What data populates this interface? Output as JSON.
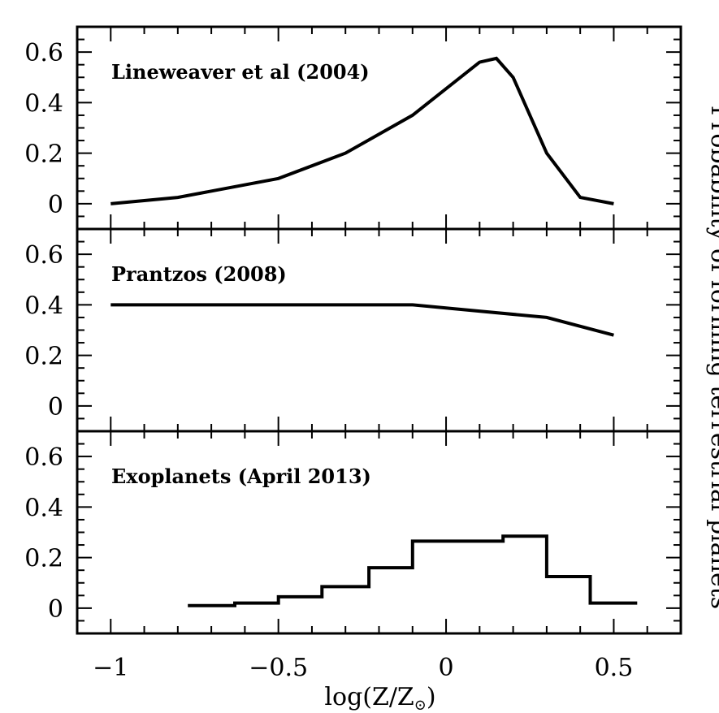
{
  "chart_data": {
    "type": "line",
    "xlabel": "log(Z/Z",
    "xlabel_sub": "⊙",
    "xlabel_close": ")",
    "ylabel": "Probability of forming terrestrial planets",
    "xlim": [
      -1.1,
      0.7
    ],
    "ylim": [
      -0.1,
      0.7
    ],
    "x_ticks": [
      -1,
      -0.5,
      0,
      0.5
    ],
    "x_tick_labels": [
      "−1",
      "−0.5",
      "0",
      "0.5"
    ],
    "y_ticks": [
      0,
      0.2,
      0.4,
      0.6
    ],
    "y_tick_labels": [
      "0",
      "0.2",
      "0.4",
      "0.6"
    ],
    "grid": false,
    "color": "#000000",
    "panels": [
      {
        "title": "Lineweaver et al (2004)",
        "style": "line",
        "x": [
          -1.0,
          -0.8,
          -0.5,
          -0.3,
          -0.1,
          0.1,
          0.15,
          0.2,
          0.3,
          0.4,
          0.5
        ],
        "y": [
          0.0,
          0.025,
          0.1,
          0.2,
          0.35,
          0.56,
          0.575,
          0.5,
          0.2,
          0.025,
          0.0
        ]
      },
      {
        "title": "Prantzos (2008)",
        "style": "line",
        "x": [
          -1.0,
          -0.1,
          0.3,
          0.5
        ],
        "y": [
          0.4,
          0.4,
          0.35,
          0.28
        ]
      },
      {
        "title": "Exoplanets (April 2013)",
        "style": "step",
        "edges": [
          -0.77,
          -0.63,
          -0.5,
          -0.37,
          -0.23,
          -0.1,
          0.17,
          0.3,
          0.43,
          0.57
        ],
        "values": [
          0.01,
          0.02,
          0.045,
          0.085,
          0.16,
          0.265,
          0.285,
          0.125,
          0.02
        ]
      }
    ]
  }
}
